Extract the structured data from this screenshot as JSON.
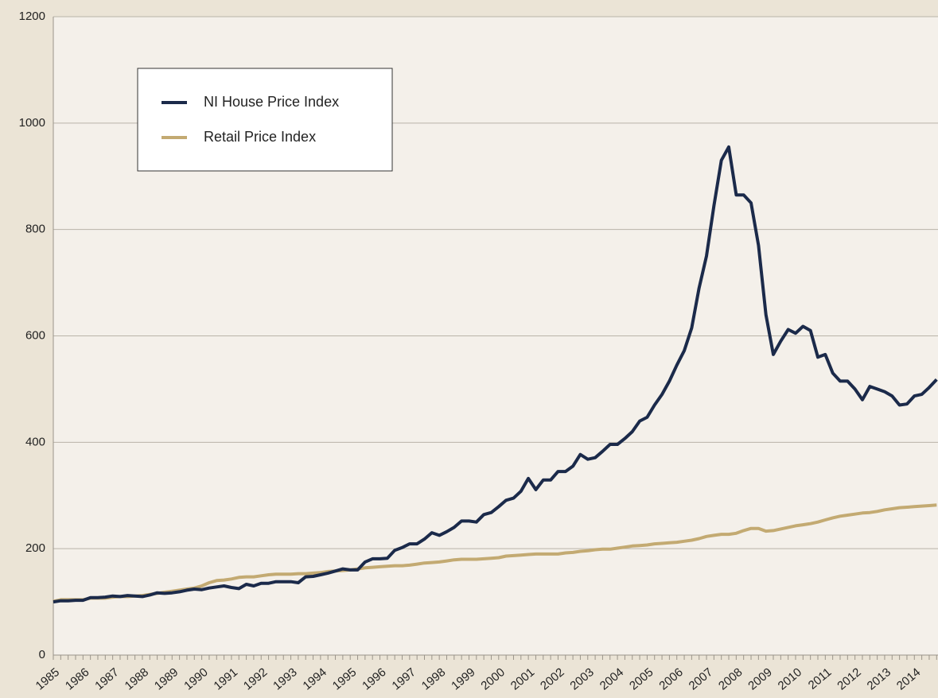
{
  "chart_data": {
    "type": "line",
    "categories": [
      "1985",
      null,
      null,
      null,
      "1986",
      null,
      null,
      null,
      "1987",
      null,
      null,
      null,
      "1988",
      null,
      null,
      null,
      "1989",
      null,
      null,
      null,
      "1990",
      null,
      null,
      null,
      "1991",
      null,
      null,
      null,
      "1992",
      null,
      null,
      null,
      "1993",
      null,
      null,
      null,
      "1994",
      null,
      null,
      null,
      "1995",
      null,
      null,
      null,
      "1996",
      null,
      null,
      null,
      "1997",
      null,
      null,
      null,
      "1998",
      null,
      null,
      null,
      "1999",
      null,
      null,
      null,
      "2000",
      null,
      null,
      null,
      "2001",
      null,
      null,
      null,
      "2002",
      null,
      null,
      null,
      "2003",
      null,
      null,
      null,
      "2004",
      null,
      null,
      null,
      "2005",
      null,
      null,
      null,
      "2006",
      null,
      null,
      null,
      "2007",
      null,
      null,
      null,
      "2008",
      null,
      null,
      null,
      "2009",
      null,
      null,
      null,
      "2010",
      null,
      null,
      null,
      "2011",
      null,
      null,
      null,
      "2012",
      null,
      null,
      null,
      "2013",
      null,
      null,
      null,
      "2014",
      null,
      null,
      null
    ],
    "series": [
      {
        "name": "NI House Price Index",
        "color": "#1b2a4a",
        "values": [
          100,
          102,
          102,
          103,
          103,
          108,
          108,
          109,
          111,
          110,
          112,
          111,
          110,
          113,
          117,
          116,
          117,
          119,
          122,
          124,
          123,
          126,
          128,
          130,
          127,
          125,
          133,
          130,
          135,
          135,
          138,
          138,
          138,
          136,
          147,
          148,
          151,
          154,
          158,
          162,
          160,
          160,
          175,
          181,
          181,
          182,
          197,
          202,
          209,
          209,
          218,
          230,
          225,
          232,
          240,
          252,
          252,
          250,
          264,
          268,
          279,
          291,
          295,
          308,
          332,
          311,
          329,
          329,
          345,
          345,
          355,
          377,
          368,
          371,
          383,
          396,
          396,
          407,
          420,
          440,
          447,
          470,
          490,
          515,
          545,
          572,
          615,
          690,
          750,
          845,
          930,
          955,
          865,
          865,
          850,
          770,
          640,
          565,
          590,
          612,
          605,
          618,
          610,
          560,
          565,
          530,
          515,
          515,
          500,
          480,
          505,
          500,
          495,
          487,
          470,
          472,
          487,
          490,
          503,
          518
        ]
      },
      {
        "name": "Retail Price Index",
        "color": "#c3aa72",
        "values": [
          101,
          104,
          104,
          104,
          104,
          107,
          107,
          107,
          109,
          110,
          110,
          111,
          112,
          114,
          116,
          118,
          120,
          122,
          124,
          126,
          130,
          136,
          140,
          141,
          143,
          146,
          147,
          147,
          149,
          151,
          152,
          152,
          152,
          153,
          153,
          154,
          155,
          157,
          158,
          159,
          160,
          162,
          164,
          165,
          166,
          167,
          168,
          168,
          169,
          171,
          173,
          174,
          175,
          177,
          179,
          180,
          180,
          180,
          181,
          182,
          183,
          186,
          187,
          188,
          189,
          190,
          190,
          190,
          190,
          192,
          193,
          195,
          196,
          198,
          199,
          199,
          201,
          203,
          205,
          206,
          207,
          209,
          210,
          211,
          212,
          214,
          216,
          219,
          223,
          225,
          227,
          227,
          229,
          234,
          238,
          238,
          233,
          234,
          237,
          240,
          243,
          245,
          247,
          250,
          254,
          258,
          261,
          263,
          265,
          267,
          268,
          270,
          273,
          275,
          277,
          278,
          279,
          280,
          281,
          282
        ]
      }
    ],
    "ylim": [
      0,
      1200
    ],
    "yticks": [
      0,
      200,
      400,
      600,
      800,
      1000,
      1200
    ],
    "grid": true,
    "legend": "upper left"
  }
}
